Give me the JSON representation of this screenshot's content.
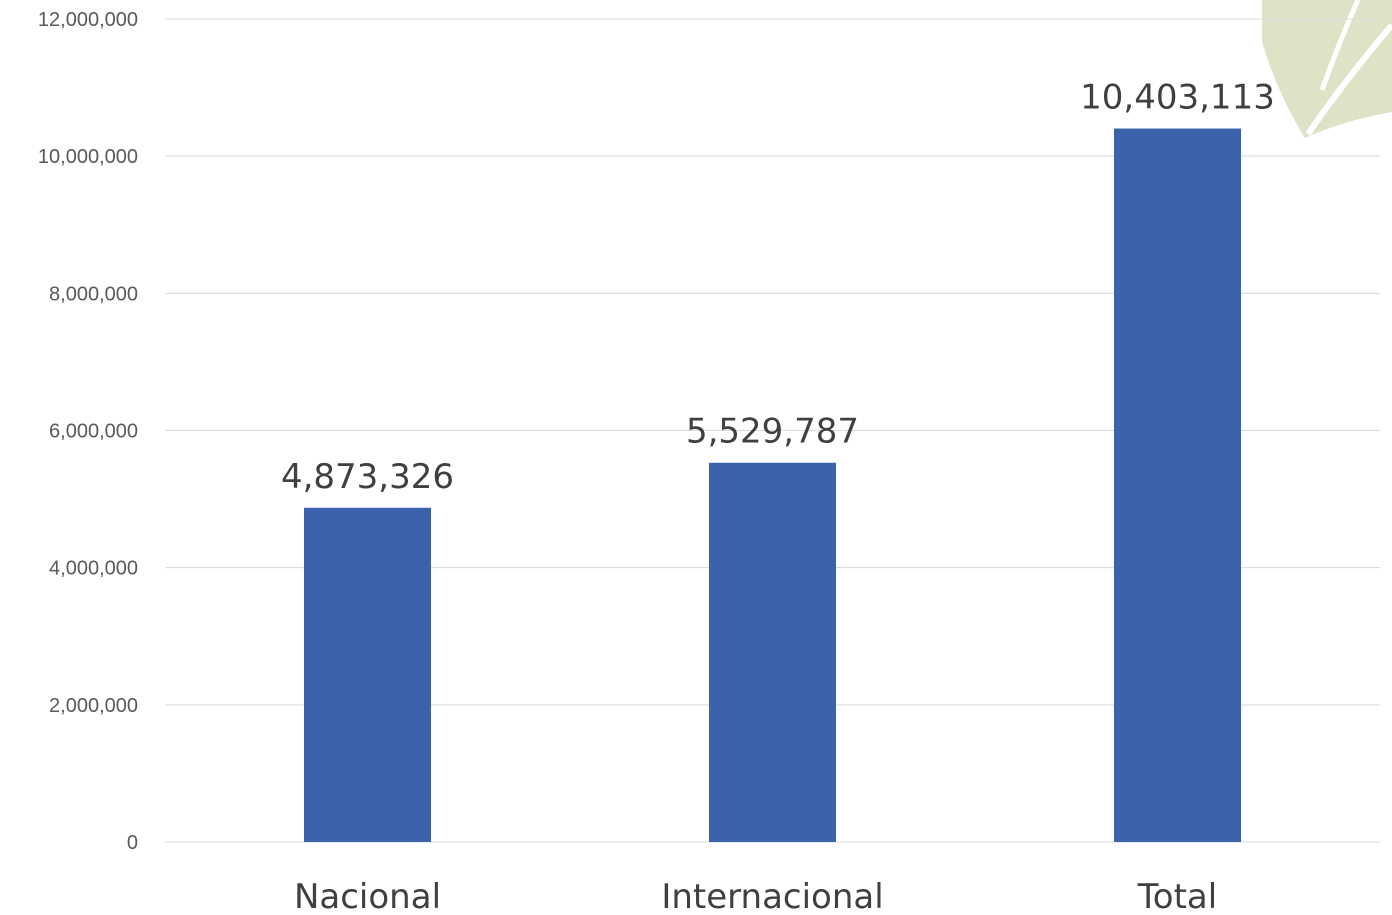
{
  "colors": {
    "bar": "#3b63ac",
    "watermark": "#dde3c7"
  },
  "watermark": {
    "icon": "leaf-watermark-icon"
  },
  "chart_data": {
    "type": "bar",
    "categories": [
      "Nacional",
      "Internacional",
      "Total"
    ],
    "values": [
      4873326,
      5529787,
      10403113
    ],
    "data_labels": [
      "4,873,326",
      "5,529,787",
      "10,403,113"
    ],
    "title": "",
    "xlabel": "",
    "ylabel": "",
    "ylim": [
      0,
      12000000
    ],
    "yticks": [
      0,
      2000000,
      4000000,
      6000000,
      8000000,
      10000000,
      12000000
    ],
    "ytick_labels": [
      "0",
      "2,000,000",
      "4,000,000",
      "6,000,000",
      "8,000,000",
      "10,000,000",
      "12,000,000"
    ],
    "grid": true,
    "legend": "none"
  }
}
